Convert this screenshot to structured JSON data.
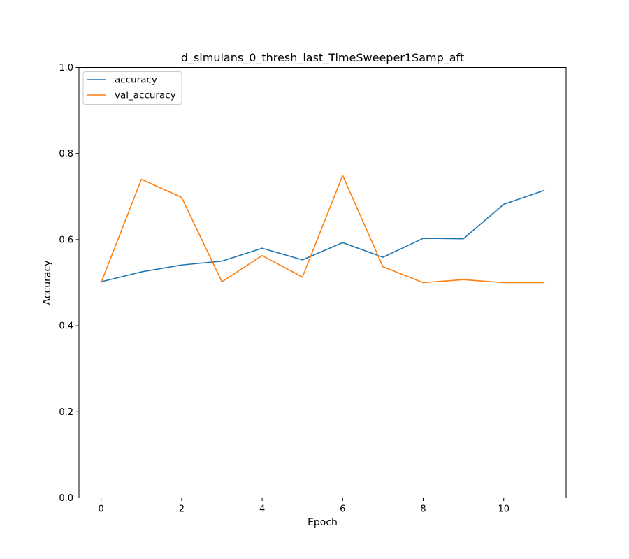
{
  "chart_data": {
    "type": "line",
    "title": "d_simulans_0_thresh_last_TimeSweeper1Samp_aft",
    "xlabel": "Epoch",
    "ylabel": "Accuracy",
    "xlim": [
      -0.55,
      11.55
    ],
    "ylim": [
      0.0,
      1.0
    ],
    "xticks": [
      0,
      2,
      4,
      6,
      8,
      10
    ],
    "yticks": [
      0.0,
      0.2,
      0.4,
      0.6,
      0.8,
      1.0
    ],
    "x": [
      0,
      1,
      2,
      3,
      4,
      5,
      6,
      7,
      8,
      9,
      10,
      11
    ],
    "grid": false,
    "legend_position": "top-left",
    "series": [
      {
        "name": "accuracy",
        "color": "#1f77b4",
        "values": [
          0.502,
          0.525,
          0.541,
          0.55,
          0.58,
          0.553,
          0.593,
          0.559,
          0.603,
          0.602,
          0.682,
          0.714
        ]
      },
      {
        "name": "val_accuracy",
        "color": "#ff7f0e",
        "values": [
          0.5,
          0.74,
          0.698,
          0.502,
          0.563,
          0.513,
          0.749,
          0.537,
          0.5,
          0.507,
          0.5,
          0.5
        ]
      }
    ]
  }
}
